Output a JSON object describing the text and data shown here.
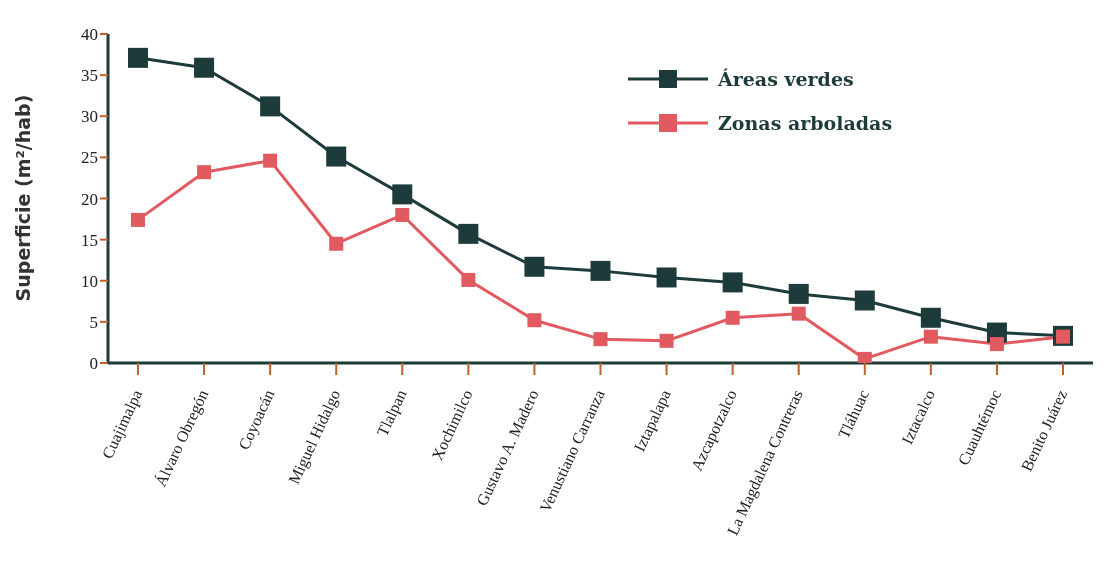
{
  "chart_data": {
    "type": "line",
    "ylabel": "Superficie (m²/hab)",
    "categories": [
      "Cuajimalpa",
      "Álvaro Obregón",
      "Coyoacán",
      "Miguel Hidalgo",
      "Tlalpan",
      "Xochimilco",
      "Gustavo A. Madero",
      "Venustiano Carranza",
      "Iztapalapa",
      "Azcapotzalco",
      "La Magdalena Contreras",
      "Tláhuac",
      "Iztacalco",
      "Cuauhtémoc",
      "Benito Juárez"
    ],
    "series": [
      {
        "name": "Áreas verdes",
        "color": "#1e3b3b",
        "values": [
          37.1,
          35.9,
          31.2,
          25.1,
          20.5,
          15.7,
          11.7,
          11.2,
          10.4,
          9.8,
          8.4,
          7.6,
          5.5,
          3.7,
          3.3
        ]
      },
      {
        "name": "Zonas arboladas",
        "color": "#e05a5f",
        "values": [
          17.4,
          23.2,
          24.6,
          14.5,
          18,
          10.1,
          5.2,
          2.9,
          2.7,
          5.5,
          6,
          0.5,
          3.2,
          2.3,
          3.2
        ]
      }
    ],
    "ylim": [
      0,
      40
    ],
    "yticks": [
      0,
      5,
      10,
      15,
      20,
      25,
      30,
      35,
      40
    ],
    "grid": false,
    "legend": "top right",
    "marker": "square",
    "line_style": "solid"
  }
}
